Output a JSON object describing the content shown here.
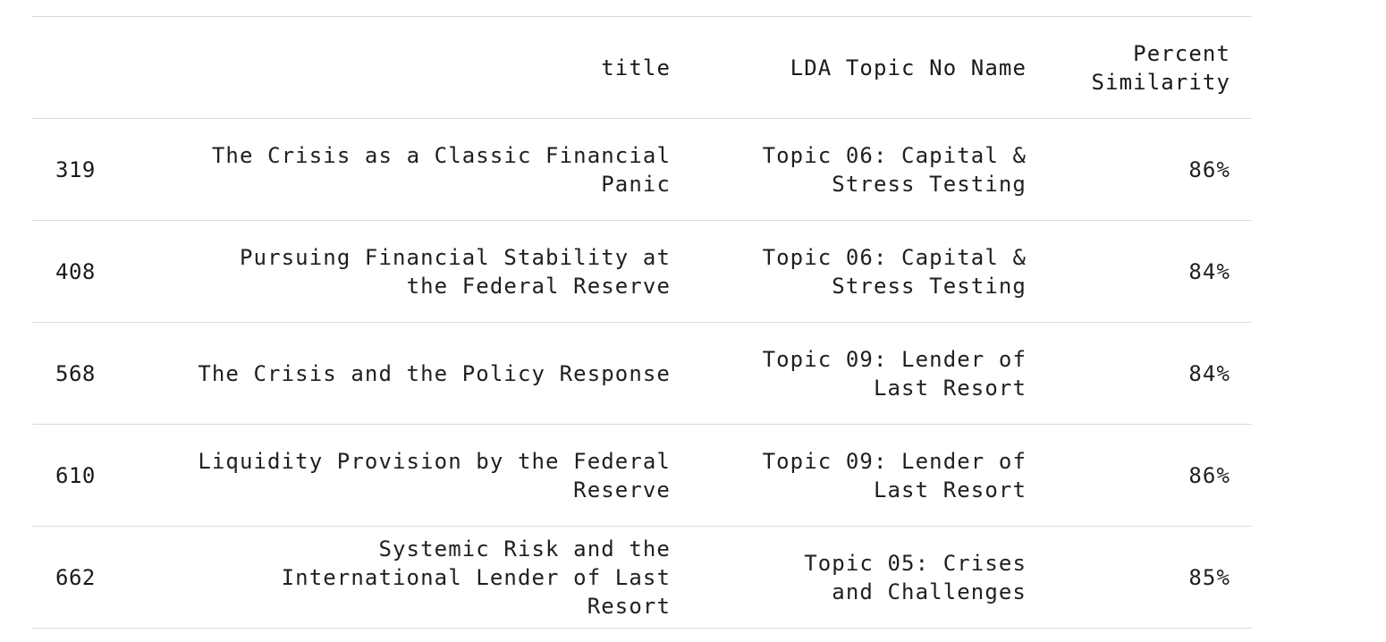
{
  "table": {
    "columns": [
      "",
      "title",
      "LDA Topic No Name",
      "Percent Similarity"
    ],
    "rows": [
      {
        "index": "319",
        "title": "The Crisis as a Classic Financial Panic",
        "topic": "Topic 06: Capital & Stress Testing",
        "similarity": "86%"
      },
      {
        "index": "408",
        "title": "Pursuing Financial Stability at the Federal Reserve",
        "topic": "Topic 06: Capital & Stress Testing",
        "similarity": "84%"
      },
      {
        "index": "568",
        "title": "The Crisis and the Policy Response",
        "topic": "Topic 09: Lender of Last Resort",
        "similarity": "84%"
      },
      {
        "index": "610",
        "title": "Liquidity Provision by the Federal Reserve",
        "topic": "Topic 09: Lender of Last Resort",
        "similarity": "86%"
      },
      {
        "index": "662",
        "title": "Systemic Risk and the International Lender of Last Resort",
        "topic": "Topic 05: Crises and Challenges",
        "similarity": "85%"
      }
    ]
  }
}
